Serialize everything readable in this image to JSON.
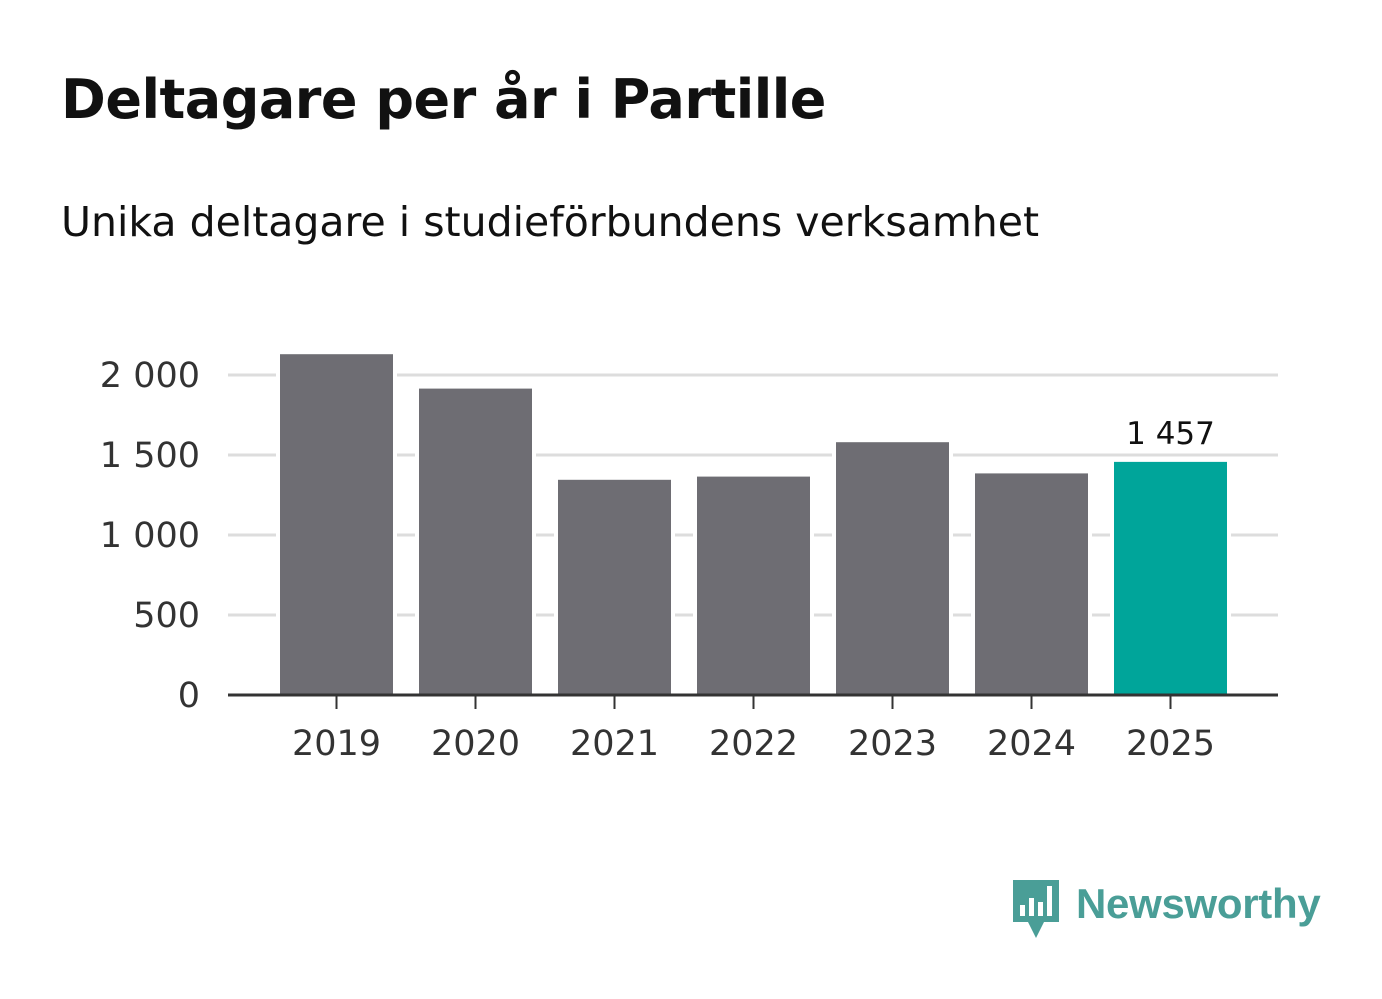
{
  "header": {
    "title": "Deltagare per år i Partille",
    "subtitle": "Unika deltagare i studieförbundens verksamhet"
  },
  "chart_data": {
    "type": "bar",
    "title": "Deltagare per år i Partille",
    "subtitle": "Unika deltagare i studieförbundens verksamhet",
    "xlabel": "",
    "ylabel": "",
    "categories": [
      "2019",
      "2020",
      "2021",
      "2022",
      "2023",
      "2024",
      "2025"
    ],
    "values": [
      2130,
      1915,
      1345,
      1365,
      1580,
      1385,
      1457
    ],
    "ylim": [
      0,
      2200
    ],
    "yticks": [
      0,
      500,
      1000,
      1500,
      2000
    ],
    "ytick_labels": [
      "0",
      "500",
      "1 000",
      "1 500",
      "2 000"
    ],
    "grid": true,
    "highlight_index": 6,
    "data_labels": [
      {
        "category": "2025",
        "text": "1 457"
      }
    ],
    "colors": {
      "bar": "#6e6d73",
      "highlight": "#00a59a",
      "grid": "#dddddd",
      "axis": "#333333"
    }
  },
  "branding": {
    "logo_text": "Newsworthy",
    "logo_icon": "newsworthy-chart-bubble-icon",
    "logo_color": "#4a9e97"
  }
}
